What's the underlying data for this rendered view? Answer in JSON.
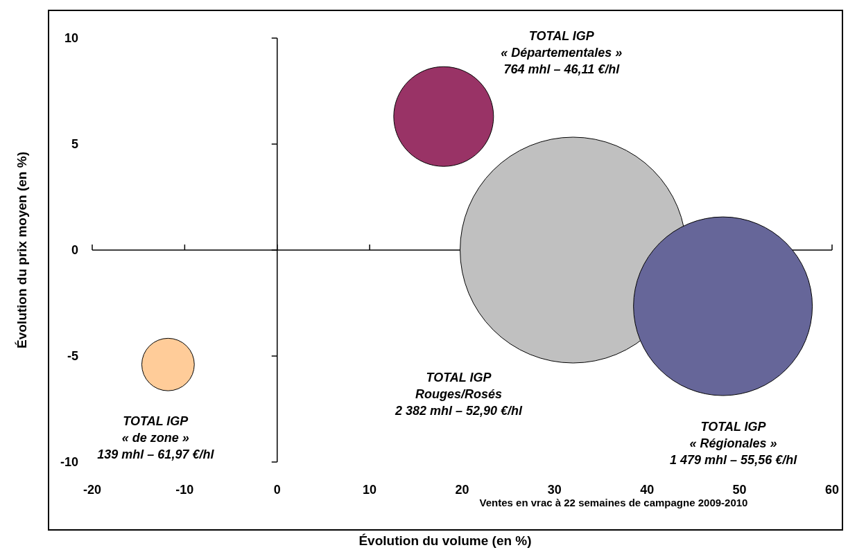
{
  "chart_data": {
    "type": "bubble",
    "xlabel": "Évolution du volume (en %)",
    "ylabel": "Évolution du prix moyen (en %)",
    "x": [
      18,
      32,
      48.2,
      -11.8
    ],
    "values": [
      6.3,
      0,
      -2.65,
      -5.4
    ],
    "sizes": [
      0.195,
      1,
      0.626,
      0.054
    ],
    "colors": [
      "#993366",
      "#c0c0c0",
      "#666699",
      "#ffcc99"
    ],
    "xlim": [
      -20,
      60
    ],
    "xticks": [
      -20,
      -10,
      0,
      10,
      20,
      30,
      40,
      50,
      60
    ],
    "ylim": [
      -10,
      10
    ],
    "yticks": [
      -10,
      -5,
      0,
      5,
      10
    ],
    "annotations": [
      "TOTAL IGP\n« Départementales »\n764 mhl – 46,11 €/hl",
      "TOTAL IGP\nRouges/Rosés\n2 382 mhl – 52,90 €/hl",
      "TOTAL IGP\n« Régionales »\n1 479 mhl – 55,56 €/hl",
      "TOTAL IGP\n« de zone »\n139 mhl – 61,97 €/hl",
      "Ventes en vrac à 22 semaines de campagne 2009-2010"
    ]
  }
}
